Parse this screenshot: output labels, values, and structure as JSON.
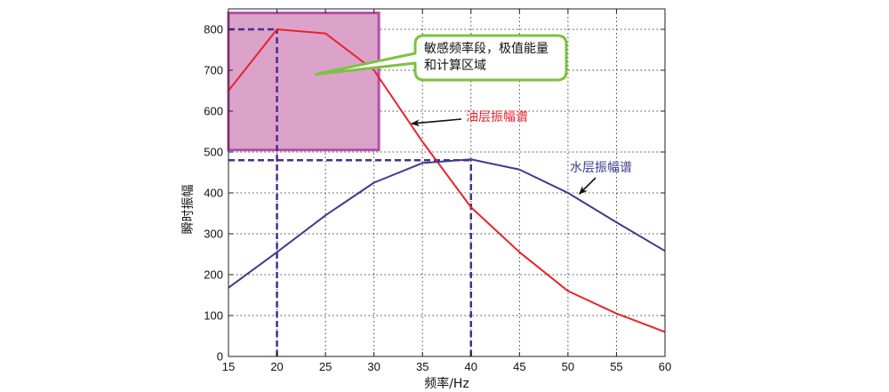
{
  "chart_data": {
    "type": "line",
    "xlabel": "频率/Hz",
    "ylabel": "瞬时振幅",
    "xlim": [
      15,
      60
    ],
    "ylim": [
      0,
      850
    ],
    "xticks": [
      15,
      20,
      25,
      30,
      35,
      40,
      45,
      50,
      55,
      60
    ],
    "yticks": [
      0,
      100,
      200,
      300,
      400,
      500,
      600,
      700,
      800
    ],
    "grid": true,
    "series": [
      {
        "name": "油层振幅谱",
        "color": "#e8232b",
        "x": [
          15,
          20,
          25,
          30,
          35,
          40,
          45,
          50,
          55,
          60
        ],
        "y": [
          650,
          800,
          790,
          700,
          525,
          365,
          255,
          160,
          105,
          60
        ]
      },
      {
        "name": "水层振幅谱",
        "color": "#3c3c8f",
        "x": [
          15,
          20,
          25,
          30,
          35,
          40,
          45,
          50,
          55,
          60
        ],
        "y": [
          168,
          255,
          345,
          425,
          473,
          482,
          457,
          400,
          328,
          258
        ]
      }
    ],
    "reference_lines": [
      {
        "type": "h",
        "value": 800,
        "x_from": 15,
        "x_to": 20
      },
      {
        "type": "v",
        "value": 20,
        "y_from": 0,
        "y_to": 800
      },
      {
        "type": "h",
        "value": 480,
        "x_from": 15,
        "x_to": 40
      },
      {
        "type": "v",
        "value": 40,
        "y_from": 0,
        "y_to": 482
      }
    ],
    "highlight_region": {
      "x": [
        15,
        30.5
      ],
      "y": [
        505,
        840
      ],
      "fill": "#dba3c9",
      "stroke": "#b64fa8"
    },
    "annotations": [
      {
        "text_lines": [
          "敏感频率段，极值能量",
          "和计算区域"
        ],
        "callout": true,
        "target": [
          24,
          690
        ]
      },
      {
        "text": "油层振幅谱",
        "target": [
          33.5,
          565
        ],
        "color": "#e8232b"
      },
      {
        "text": "水层振幅谱",
        "target": [
          50.8,
          393
        ],
        "color": "#3c3c8f"
      }
    ]
  }
}
